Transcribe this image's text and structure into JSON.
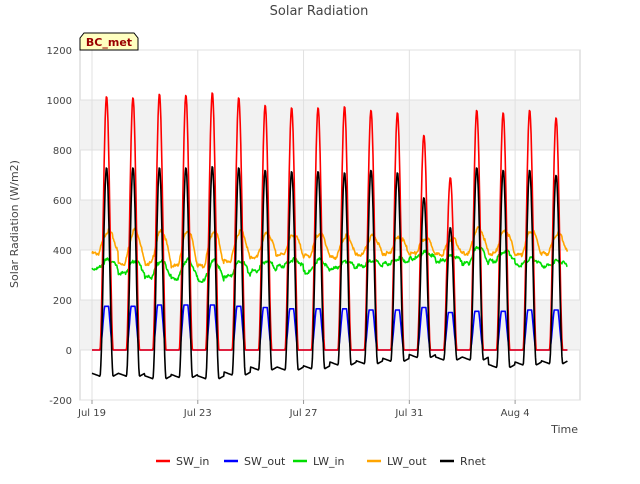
{
  "chart_data": {
    "type": "line",
    "title": "Solar Radiation",
    "xlabel": "Time",
    "ylabel": "Solar Radiation (W/m2)",
    "site_label": "BC_met",
    "ylim": [
      -200,
      1200
    ],
    "yticks": [
      -200,
      0,
      200,
      400,
      600,
      800,
      1000,
      1200
    ],
    "xlim": [
      "2024-07-19",
      "2024-08-06"
    ],
    "xticks": [
      {
        "date": "2024-07-19",
        "label": "Jul 19"
      },
      {
        "date": "2024-07-23",
        "label": "Jul 23"
      },
      {
        "date": "2024-07-27",
        "label": "Jul 27"
      },
      {
        "date": "2024-07-31",
        "label": "Jul 31"
      },
      {
        "date": "2024-08-04",
        "label": "Aug 4"
      }
    ],
    "grid": true,
    "legend_position": "bottom",
    "series": [
      {
        "name": "SW_in",
        "color": "#ff0000",
        "dates": [
          "2024-07-19",
          "2024-07-20",
          "2024-07-21",
          "2024-07-22",
          "2024-07-23",
          "2024-07-24",
          "2024-07-25",
          "2024-07-26",
          "2024-07-27",
          "2024-07-28",
          "2024-07-29",
          "2024-07-30",
          "2024-07-31",
          "2024-08-01",
          "2024-08-02",
          "2024-08-03",
          "2024-08-04",
          "2024-08-05"
        ],
        "daily_max": [
          1015,
          1010,
          1025,
          1020,
          1030,
          1010,
          980,
          970,
          970,
          975,
          960,
          950,
          860,
          690,
          960,
          950,
          960,
          930
        ]
      },
      {
        "name": "SW_out",
        "color": "#0000ff",
        "dates": [
          "2024-07-19",
          "2024-07-20",
          "2024-07-21",
          "2024-07-22",
          "2024-07-23",
          "2024-07-24",
          "2024-07-25",
          "2024-07-26",
          "2024-07-27",
          "2024-07-28",
          "2024-07-29",
          "2024-07-30",
          "2024-07-31",
          "2024-08-01",
          "2024-08-02",
          "2024-08-03",
          "2024-08-04",
          "2024-08-05"
        ],
        "daily_max": [
          175,
          175,
          180,
          180,
          180,
          175,
          170,
          165,
          165,
          165,
          160,
          160,
          170,
          150,
          155,
          155,
          160,
          160
        ],
        "night_value": 0
      },
      {
        "name": "LW_in",
        "color": "#00dd00",
        "dates": [
          "2024-07-19",
          "2024-07-20",
          "2024-07-21",
          "2024-07-22",
          "2024-07-23",
          "2024-07-24",
          "2024-07-25",
          "2024-07-26",
          "2024-07-27",
          "2024-07-28",
          "2024-07-29",
          "2024-07-30",
          "2024-07-31",
          "2024-08-01",
          "2024-08-02",
          "2024-08-03",
          "2024-08-04",
          "2024-08-05"
        ],
        "daily_min": [
          330,
          310,
          295,
          290,
          280,
          300,
          320,
          340,
          315,
          330,
          340,
          350,
          370,
          360,
          350,
          360,
          345,
          340
        ],
        "daily_max": [
          365,
          360,
          360,
          365,
          360,
          360,
          360,
          365,
          365,
          360,
          360,
          370,
          395,
          380,
          415,
          400,
          370,
          360
        ]
      },
      {
        "name": "LW_out",
        "color": "#ffa500",
        "dates": [
          "2024-07-19",
          "2024-07-20",
          "2024-07-21",
          "2024-07-22",
          "2024-07-23",
          "2024-07-24",
          "2024-07-25",
          "2024-07-26",
          "2024-07-27",
          "2024-07-28",
          "2024-07-29",
          "2024-07-30",
          "2024-07-31",
          "2024-08-01",
          "2024-08-02",
          "2024-08-03",
          "2024-08-04",
          "2024-08-05"
        ],
        "daily_min": [
          390,
          350,
          350,
          340,
          340,
          360,
          375,
          385,
          380,
          375,
          385,
          390,
          390,
          385,
          390,
          390,
          385,
          390
        ],
        "daily_max": [
          480,
          485,
          480,
          480,
          480,
          480,
          470,
          465,
          470,
          460,
          460,
          455,
          450,
          450,
          490,
          480,
          480,
          470
        ]
      },
      {
        "name": "Rnet",
        "color": "#000000",
        "dates": [
          "2024-07-19",
          "2024-07-20",
          "2024-07-21",
          "2024-07-22",
          "2024-07-23",
          "2024-07-24",
          "2024-07-25",
          "2024-07-26",
          "2024-07-27",
          "2024-07-28",
          "2024-07-29",
          "2024-07-30",
          "2024-07-31",
          "2024-08-01",
          "2024-08-02",
          "2024-08-03",
          "2024-08-04",
          "2024-08-05"
        ],
        "daily_max": [
          730,
          730,
          730,
          730,
          735,
          730,
          720,
          715,
          715,
          710,
          720,
          710,
          610,
          490,
          730,
          720,
          720,
          700
        ],
        "daily_min": [
          -105,
          -105,
          -115,
          -110,
          -115,
          -100,
          -80,
          -80,
          -75,
          -60,
          -55,
          -45,
          -30,
          -40,
          -40,
          -70,
          -60,
          -55
        ]
      }
    ]
  }
}
